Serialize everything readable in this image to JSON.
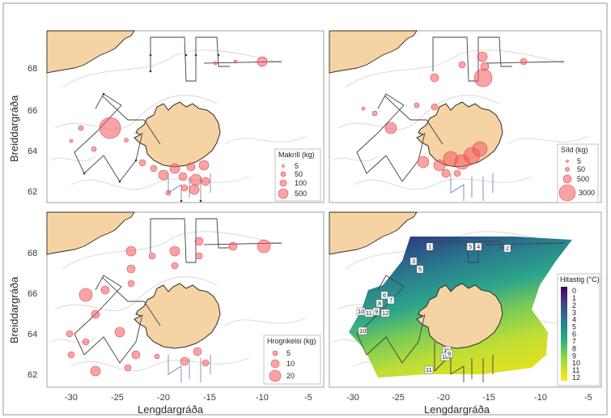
{
  "y_axis_title": "Breiddargráða",
  "x_axis_title": "Lengdargráða",
  "y_ticks": [
    "62",
    "64",
    "66",
    "68"
  ],
  "x_ticks": [
    "-30",
    "-25",
    "-20",
    "-15",
    "-10",
    "-5"
  ],
  "colors": {
    "land": "#f6d3a3",
    "bubble": "#f25a5f",
    "track": "#404040",
    "contour": "#d6d6d6"
  },
  "panels": {
    "makrill": {
      "legend_title": "Makríll (kg)",
      "legend_items": [
        "5",
        "50",
        "100",
        "500"
      ]
    },
    "sild": {
      "legend_title": "Síld (kg)",
      "legend_items": [
        "5",
        "50",
        "500",
        "3000"
      ]
    },
    "hrognkelsi": {
      "legend_title": "Hrognkelsi (kg)",
      "legend_items": [
        "5",
        "10",
        "20"
      ]
    },
    "hitastig": {
      "legend_title": "Hitastig (°C)",
      "scale_labels": [
        "0",
        "1",
        "2",
        "3",
        "4",
        "5",
        "6",
        "7",
        "8",
        "9",
        "10",
        "11",
        "12"
      ],
      "isoline_labels": [
        "1",
        "5",
        "4",
        "2",
        "3",
        "5",
        "6",
        "8",
        "7",
        "9",
        "11",
        "10",
        "12",
        "10",
        "11",
        "10",
        "9",
        "11"
      ]
    }
  }
}
